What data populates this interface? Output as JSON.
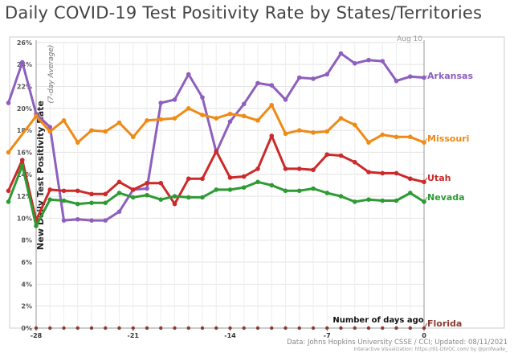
{
  "chart_data": {
    "type": "line",
    "title": "Daily COVID-19 Test Positivity Rate by States/Territories",
    "ylabel": "New Daily Test Positivity Rate",
    "ylabel_sub": "(7-day Average)",
    "xlabel": "Number of days ago",
    "date_label": "Aug 10",
    "source_line1": "Data: Johns Hopkins University CSSE / CCI; Updated: 08/11/2021",
    "source_line2": "Interactive Visualization: https://91-DIVOC.com/ by @profwade_",
    "x_ticks": [
      -28,
      -21,
      -14,
      -7,
      0
    ],
    "y_ticks": [
      "0%",
      "2%",
      "4%",
      "6%",
      "8%",
      "10%",
      "12%",
      "14%",
      "16%",
      "18%",
      "20%",
      "22%",
      "24%",
      "26%"
    ],
    "xlim": [
      -28,
      0
    ],
    "ylim": [
      0,
      26.5
    ],
    "grid": true,
    "legend": "end-of-line labels",
    "x": [
      -28,
      -27,
      -26,
      -25,
      -24,
      -23,
      -22,
      -21,
      -20,
      -19,
      -18,
      -17,
      -16,
      -15,
      -14,
      -13,
      -12,
      -11,
      -10,
      -9,
      -8,
      -7,
      -6,
      -5,
      -4,
      -3,
      -2,
      -1,
      0
    ],
    "series": [
      {
        "name": "Arkansas",
        "color": "#8e5fbf",
        "lead_in": [
          [
            -30,
            20.5
          ],
          [
            -29,
            24.2
          ]
        ],
        "values": [
          19.5,
          18.3,
          9.8,
          9.9,
          9.8,
          9.8,
          10.6,
          12.6,
          12.7,
          20.5,
          20.8,
          23.1,
          21.0,
          16.0,
          18.8,
          20.4,
          22.3,
          22.1,
          20.8,
          22.8,
          22.7,
          23.1,
          25.0,
          24.1,
          24.4,
          24.3,
          22.5,
          22.9,
          22.8
        ]
      },
      {
        "name": "Missouri",
        "color": "#f08a16",
        "lead_in": [
          [
            -30,
            16.0
          ]
        ],
        "values": [
          19.3,
          17.9,
          18.9,
          16.9,
          18.0,
          17.9,
          18.7,
          17.4,
          18.9,
          19.0,
          19.1,
          20.0,
          19.4,
          19.1,
          19.5,
          19.3,
          18.9,
          20.3,
          17.7,
          18.0,
          17.8,
          17.9,
          19.1,
          18.5,
          16.9,
          17.6,
          17.4,
          17.4,
          16.9
        ]
      },
      {
        "name": "Utah",
        "color": "#cc2a2a",
        "lead_in": [
          [
            -30,
            12.5
          ],
          [
            -29,
            15.3
          ]
        ],
        "values": [
          9.8,
          12.6,
          12.5,
          12.5,
          12.2,
          12.2,
          13.3,
          12.6,
          13.2,
          13.2,
          11.3,
          13.6,
          13.6,
          16.1,
          13.7,
          13.8,
          14.5,
          17.5,
          14.5,
          14.5,
          14.4,
          15.8,
          15.7,
          15.1,
          14.2,
          14.1,
          14.1,
          13.6,
          13.3
        ]
      },
      {
        "name": "Nevada",
        "color": "#2e9a34",
        "lead_in": [
          [
            -30,
            11.5
          ],
          [
            -29,
            14.8
          ]
        ],
        "values": [
          9.3,
          11.7,
          11.6,
          11.3,
          11.4,
          11.4,
          12.3,
          11.9,
          12.1,
          11.7,
          12.0,
          11.9,
          11.9,
          12.6,
          12.6,
          12.8,
          13.3,
          13.0,
          12.5,
          12.5,
          12.7,
          12.3,
          12.0,
          11.5,
          11.7,
          11.6,
          11.6,
          12.3,
          11.5
        ]
      },
      {
        "name": "Florida",
        "color": "#8a3b32",
        "lead_in": [],
        "values": [
          0,
          0,
          0,
          0,
          0,
          0,
          0,
          0,
          0,
          0,
          0,
          0,
          0,
          0,
          0,
          0,
          0,
          0,
          0,
          0,
          0,
          0,
          0,
          0,
          0,
          0,
          0,
          0,
          0
        ]
      }
    ]
  }
}
